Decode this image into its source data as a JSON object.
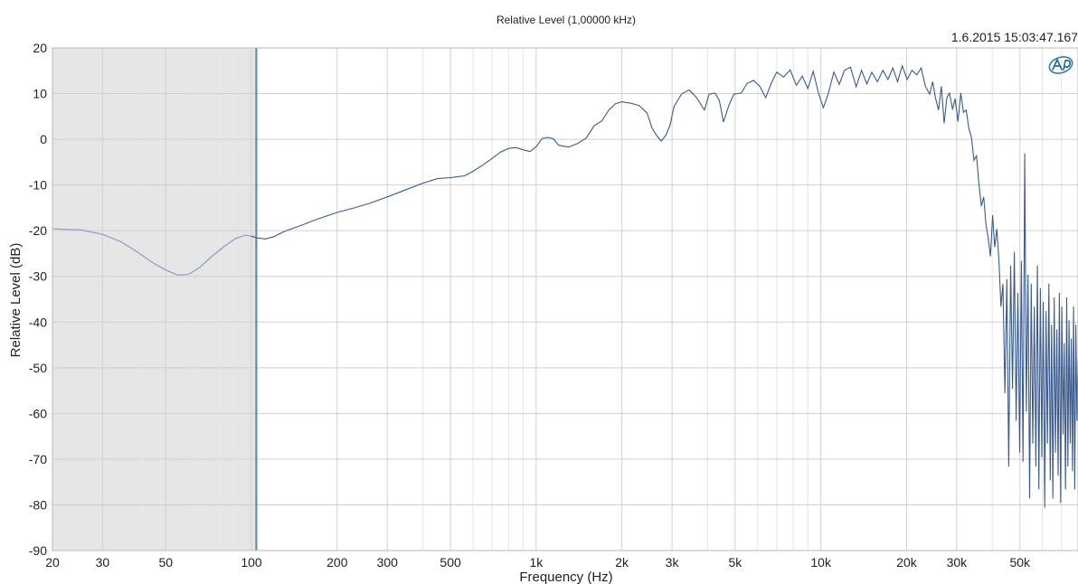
{
  "chart_data": {
    "type": "line",
    "title": "Relative Level (1,00000 kHz)",
    "timestamp": "1.6.2015 15:03:47.167",
    "xlabel": "Frequency (Hz)",
    "ylabel": "Relative Level (dB)",
    "x_scale": "log",
    "xlim": [
      20,
      80000
    ],
    "ylim": [
      -90,
      20
    ],
    "grid": true,
    "xticks": [
      {
        "value": 20,
        "label": "20"
      },
      {
        "value": 30,
        "label": "30"
      },
      {
        "value": 50,
        "label": "50"
      },
      {
        "value": 100,
        "label": "100"
      },
      {
        "value": 200,
        "label": "200"
      },
      {
        "value": 300,
        "label": "300"
      },
      {
        "value": 500,
        "label": "500"
      },
      {
        "value": 1000,
        "label": "1k"
      },
      {
        "value": 2000,
        "label": "2k"
      },
      {
        "value": 3000,
        "label": "3k"
      },
      {
        "value": 5000,
        "label": "5k"
      },
      {
        "value": 10000,
        "label": "10k"
      },
      {
        "value": 20000,
        "label": "20k"
      },
      {
        "value": 30000,
        "label": "30k"
      },
      {
        "value": 50000,
        "label": "50k"
      }
    ],
    "yticks": [
      {
        "value": 20,
        "label": "20"
      },
      {
        "value": 10,
        "label": "10"
      },
      {
        "value": 0,
        "label": "0"
      },
      {
        "value": -10,
        "label": "-10"
      },
      {
        "value": -20,
        "label": "-20"
      },
      {
        "value": -30,
        "label": "-30"
      },
      {
        "value": -40,
        "label": "-40"
      },
      {
        "value": -50,
        "label": "-50"
      },
      {
        "value": -60,
        "label": "-60"
      },
      {
        "value": -70,
        "label": "-70"
      },
      {
        "value": -80,
        "label": "-80"
      },
      {
        "value": -90,
        "label": "-90"
      }
    ],
    "shaded_region": {
      "x": [
        20,
        104
      ],
      "color": "#e6e6e6"
    },
    "marker_line": {
      "x": 104,
      "color": "#5b8fb0"
    },
    "series": [
      {
        "color": "#3b5a8c",
        "dimmed_color": "#8a9cc4",
        "points": [
          [
            20,
            -19.6
          ],
          [
            25,
            -19.8
          ],
          [
            30,
            -20.8
          ],
          [
            35,
            -22.5
          ],
          [
            40,
            -24.8
          ],
          [
            45,
            -27
          ],
          [
            50,
            -28.6
          ],
          [
            55,
            -29.7
          ],
          [
            60,
            -29.6
          ],
          [
            66,
            -28
          ],
          [
            72,
            -25.8
          ],
          [
            80,
            -23.5
          ],
          [
            88,
            -21.7
          ],
          [
            95,
            -21
          ],
          [
            100,
            -21.2
          ],
          [
            105,
            -21.6
          ],
          [
            112,
            -21.8
          ],
          [
            120,
            -21.3
          ],
          [
            130,
            -20.2
          ],
          [
            150,
            -18.8
          ],
          [
            170,
            -17.5
          ],
          [
            200,
            -16
          ],
          [
            230,
            -15
          ],
          [
            260,
            -14
          ],
          [
            300,
            -12.6
          ],
          [
            350,
            -11
          ],
          [
            400,
            -9.6
          ],
          [
            450,
            -8.6
          ],
          [
            500,
            -8.4
          ],
          [
            560,
            -8
          ],
          [
            600,
            -7
          ],
          [
            650,
            -5.6
          ],
          [
            700,
            -4.2
          ],
          [
            750,
            -2.8
          ],
          [
            800,
            -2
          ],
          [
            850,
            -1.8
          ],
          [
            900,
            -2.3
          ],
          [
            950,
            -2.7
          ],
          [
            1000,
            -1.6
          ],
          [
            1050,
            0.2
          ],
          [
            1100,
            0.4
          ],
          [
            1150,
            0.1
          ],
          [
            1200,
            -1.3
          ],
          [
            1300,
            -1.7
          ],
          [
            1400,
            -0.9
          ],
          [
            1500,
            0.3
          ],
          [
            1600,
            3
          ],
          [
            1700,
            4
          ],
          [
            1800,
            6.4
          ],
          [
            1900,
            7.8
          ],
          [
            2000,
            8.2
          ],
          [
            2150,
            7.9
          ],
          [
            2300,
            7.4
          ],
          [
            2450,
            5.8
          ],
          [
            2550,
            2.5
          ],
          [
            2650,
            0.8
          ],
          [
            2750,
            -0.4
          ],
          [
            2850,
            0.8
          ],
          [
            2950,
            3
          ],
          [
            3050,
            7.2
          ],
          [
            3250,
            10
          ],
          [
            3450,
            10.8
          ],
          [
            3650,
            9.2
          ],
          [
            3900,
            6.4
          ],
          [
            4050,
            9.9
          ],
          [
            4250,
            10.1
          ],
          [
            4400,
            8.5
          ],
          [
            4550,
            3.8
          ],
          [
            4750,
            7.4
          ],
          [
            4950,
            9.9
          ],
          [
            5250,
            10.1
          ],
          [
            5500,
            12.2
          ],
          [
            5800,
            12.9
          ],
          [
            6100,
            11.6
          ],
          [
            6400,
            9.1
          ],
          [
            6700,
            12.3
          ],
          [
            7000,
            14.7
          ],
          [
            7400,
            13.6
          ],
          [
            7800,
            15.2
          ],
          [
            8200,
            11.8
          ],
          [
            8600,
            13.8
          ],
          [
            9000,
            11.1
          ],
          [
            9400,
            14.9
          ],
          [
            9800,
            10.2
          ],
          [
            10200,
            6.9
          ],
          [
            10600,
            9.9
          ],
          [
            11100,
            14.7
          ],
          [
            11600,
            12
          ],
          [
            12100,
            15.1
          ],
          [
            12700,
            15.8
          ],
          [
            13300,
            11.5
          ],
          [
            13900,
            15.1
          ],
          [
            14500,
            12.1
          ],
          [
            15100,
            14.7
          ],
          [
            15800,
            12.6
          ],
          [
            16500,
            15.1
          ],
          [
            17200,
            13.1
          ],
          [
            17900,
            15.6
          ],
          [
            18600,
            12.6
          ],
          [
            19300,
            16.1
          ],
          [
            20100,
            13.1
          ],
          [
            20900,
            15.1
          ],
          [
            21700,
            14.1
          ],
          [
            22500,
            15.6
          ],
          [
            23300,
            11.6
          ],
          [
            24100,
            9.9
          ],
          [
            24700,
            12.6
          ],
          [
            25300,
            8.9
          ],
          [
            25900,
            6.4
          ],
          [
            26500,
            11.6
          ],
          [
            27100,
            3.5
          ],
          [
            27700,
            9.1
          ],
          [
            28300,
            10.1
          ],
          [
            29000,
            6.5
          ],
          [
            29600,
            8.9
          ],
          [
            30300,
            3.9
          ],
          [
            31000,
            10.1
          ],
          [
            31700,
            5.9
          ],
          [
            32400,
            6.4
          ],
          [
            33100,
            2.4
          ],
          [
            33800,
            0.4
          ],
          [
            34500,
            -4.6
          ],
          [
            35200,
            -3.6
          ],
          [
            35900,
            -9.6
          ],
          [
            36600,
            -14.6
          ],
          [
            37300,
            -12.6
          ],
          [
            38000,
            -18.6
          ],
          [
            38700,
            -21.6
          ],
          [
            39400,
            -25.6
          ],
          [
            40100,
            -16.6
          ],
          [
            40800,
            -23.6
          ],
          [
            41500,
            -19.6
          ],
          [
            42200,
            -26.6
          ],
          [
            42900,
            -36.6
          ],
          [
            43600,
            -31.6
          ],
          [
            44300,
            -55.6
          ],
          [
            45000,
            -30.6
          ],
          [
            45700,
            -71.6
          ],
          [
            46400,
            -27.6
          ],
          [
            47100,
            -54.6
          ],
          [
            47800,
            -24.6
          ],
          [
            48500,
            -61.6
          ],
          [
            49200,
            -33.6
          ],
          [
            49900,
            -68.6
          ],
          [
            50600,
            -26.6
          ],
          [
            51300,
            -70.6
          ],
          [
            52000,
            -3.1
          ],
          [
            52700,
            -59.6
          ],
          [
            53400,
            -29.6
          ],
          [
            54100,
            -78.6
          ],
          [
            54800,
            -31.6
          ],
          [
            55500,
            -66.6
          ],
          [
            56200,
            -36.6
          ],
          [
            56900,
            -71.6
          ],
          [
            57600,
            -27.6
          ],
          [
            58300,
            -76.6
          ],
          [
            59000,
            -32.6
          ],
          [
            59700,
            -69.6
          ],
          [
            60400,
            -35.6
          ],
          [
            61100,
            -80.6
          ],
          [
            61800,
            -37.6
          ],
          [
            62500,
            -66.6
          ],
          [
            63200,
            -31.6
          ],
          [
            63900,
            -74.6
          ],
          [
            64600,
            -40.6
          ],
          [
            65300,
            -78.6
          ],
          [
            66000,
            -34.6
          ],
          [
            66700,
            -68.6
          ],
          [
            67400,
            -41.6
          ],
          [
            68100,
            -73.6
          ],
          [
            68800,
            -33.6
          ],
          [
            69500,
            -79.6
          ],
          [
            70200,
            -36.6
          ],
          [
            70900,
            -64.6
          ],
          [
            71600,
            -44.6
          ],
          [
            72300,
            -76.6
          ],
          [
            73000,
            -34.6
          ],
          [
            73700,
            -71.6
          ],
          [
            74400,
            -39.6
          ],
          [
            75100,
            -66.6
          ],
          [
            75800,
            -43.6
          ],
          [
            76500,
            -72.6
          ],
          [
            77200,
            -36.6
          ],
          [
            77900,
            -76.6
          ],
          [
            78600,
            -40.6
          ],
          [
            79300,
            -61.6
          ],
          [
            80000,
            -47.6
          ]
        ]
      }
    ]
  }
}
